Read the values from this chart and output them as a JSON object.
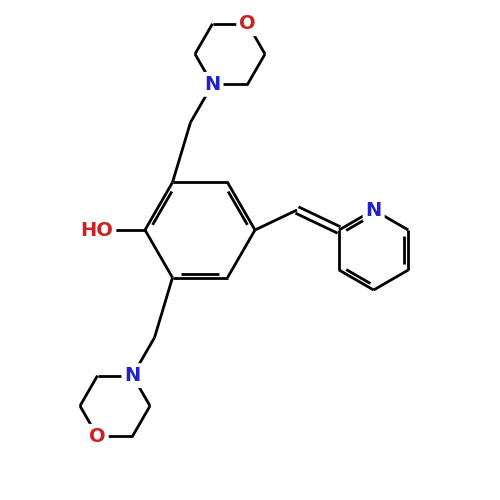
{
  "bg_color": "#ffffff",
  "bond_color": "#000000",
  "bond_width": 2.0,
  "atom_colors": {
    "N": "#2222cc",
    "O": "#cc2222"
  },
  "font_size": 14,
  "fig_size": [
    5.0,
    5.0
  ],
  "dpi": 100
}
